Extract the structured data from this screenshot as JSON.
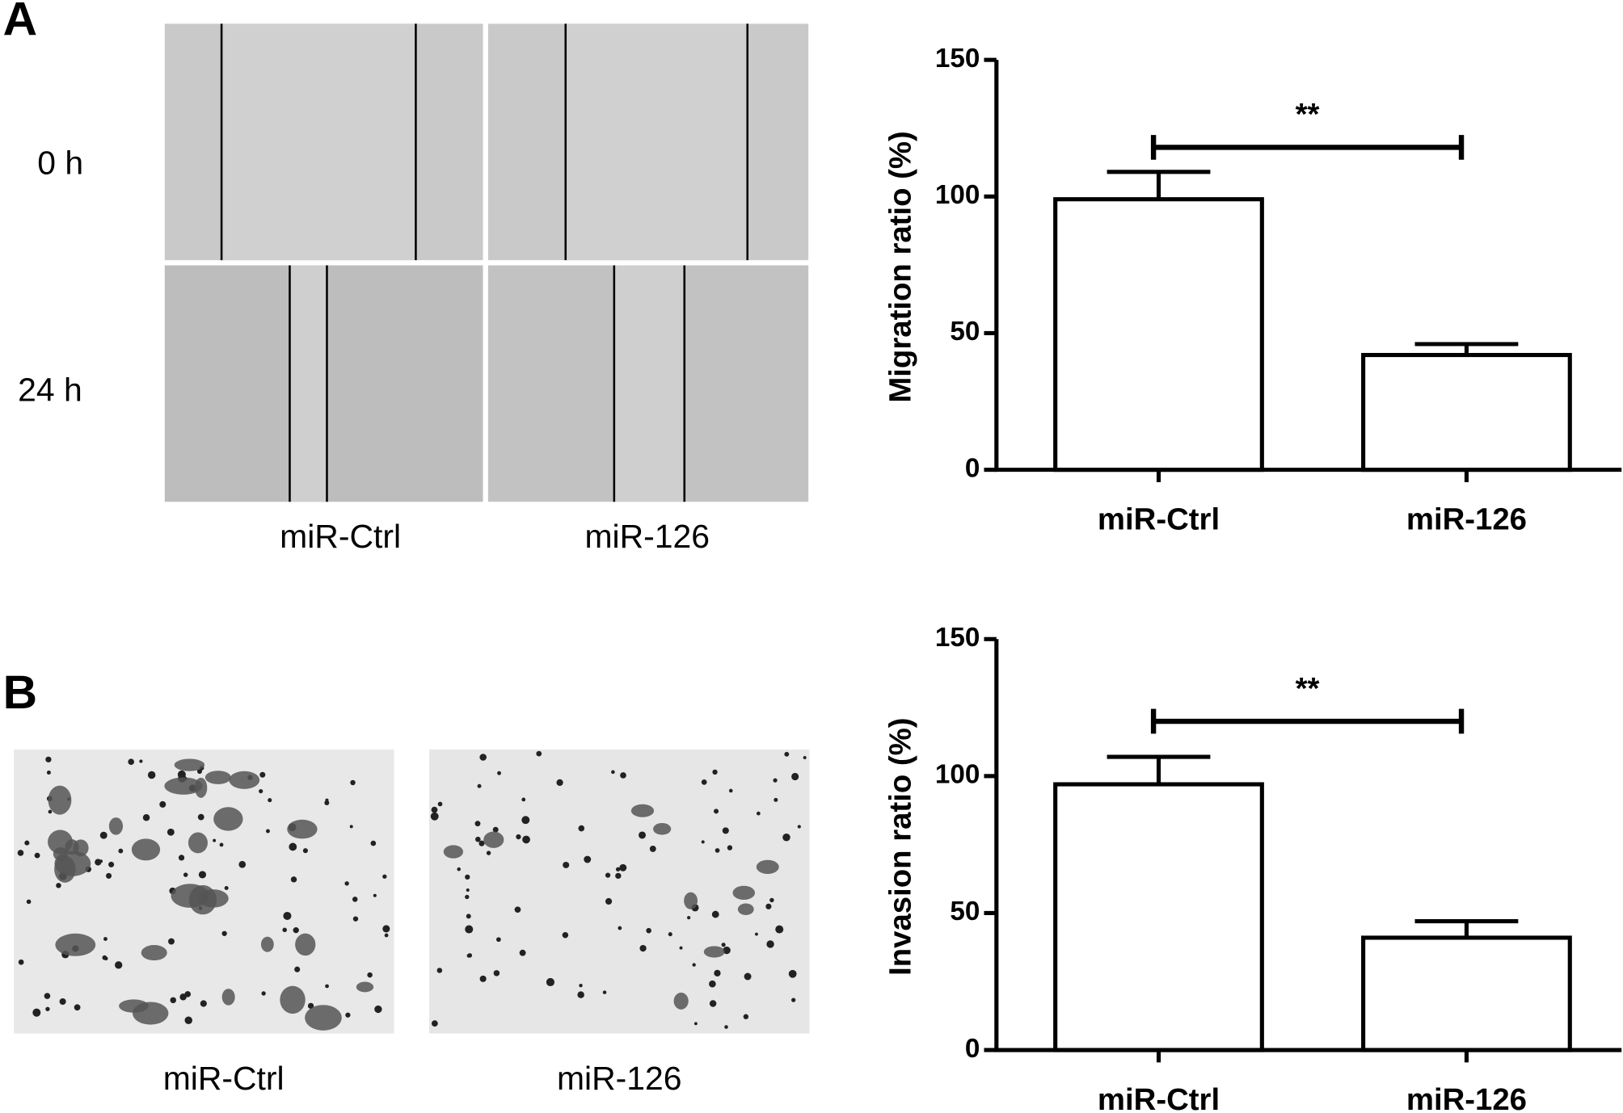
{
  "figure": {
    "panel_labels": [
      "A",
      "B"
    ],
    "row_labels": [
      "0 h",
      "24 h"
    ],
    "image_labels_a": [
      "miR-Ctrl",
      "miR-126"
    ],
    "image_labels_b": [
      "miR-Ctrl",
      "miR-126"
    ]
  },
  "chart_data": [
    {
      "type": "bar",
      "ylabel": "Migration ratio (%)",
      "categories": [
        "miR-Ctrl",
        "miR-126"
      ],
      "values": [
        99,
        42
      ],
      "errors": [
        10,
        4
      ],
      "color": "#ffffff",
      "ylim": [
        0,
        150
      ],
      "yticks": [
        0,
        50,
        100,
        150
      ],
      "significance": {
        "label": "**",
        "y": 118
      }
    },
    {
      "type": "bar",
      "ylabel": "Invasion ratio (%)",
      "categories": [
        "miR-Ctrl",
        "miR-126"
      ],
      "values": [
        97,
        41
      ],
      "errors": [
        10,
        6
      ],
      "color": "#ffffff",
      "ylim": [
        0,
        150
      ],
      "yticks": [
        0,
        50,
        100,
        150
      ],
      "significance": {
        "label": "**",
        "y": 120
      }
    }
  ]
}
